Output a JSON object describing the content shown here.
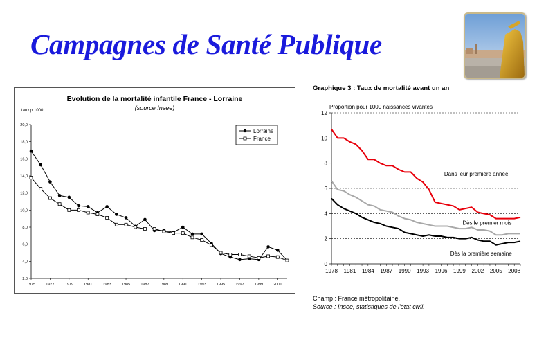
{
  "slide": {
    "title": "Campagnes de Santé Publique"
  },
  "photo": {
    "icon": "town-square-statue-photo"
  },
  "chart_data": [
    {
      "type": "line",
      "title": "Evolution de la mortalité infantile France - Lorraine",
      "subtitle": "(source Insee)",
      "ylabel": "taux p.1000",
      "xlabel": "",
      "ylim": [
        2.0,
        20.0
      ],
      "yticks": [
        "2,0",
        "4,0",
        "6,0",
        "8,0",
        "10,0",
        "12,0",
        "14,0",
        "16,0",
        "18,0",
        "20,0"
      ],
      "xlim": [
        1975,
        2002
      ],
      "xticks": [
        "1975",
        "1977",
        "1979",
        "1981",
        "1983",
        "1985",
        "1987",
        "1989",
        "1991",
        "1993",
        "1995",
        "1997",
        "1999",
        "2001"
      ],
      "x": [
        1975,
        1976,
        1977,
        1978,
        1979,
        1980,
        1981,
        1982,
        1983,
        1984,
        1985,
        1986,
        1987,
        1988,
        1989,
        1990,
        1991,
        1992,
        1993,
        1994,
        1995,
        1996,
        1997,
        1998,
        1999,
        2000,
        2001,
        2002
      ],
      "series": [
        {
          "name": "Lorraine",
          "marker": "filled-circle",
          "values": [
            16.9,
            15.3,
            13.3,
            11.7,
            11.5,
            10.5,
            10.4,
            9.7,
            10.4,
            9.5,
            9.1,
            8.1,
            8.9,
            7.6,
            7.6,
            7.4,
            8.0,
            7.2,
            7.2,
            6.1,
            4.9,
            4.5,
            4.2,
            4.3,
            4.2,
            5.7,
            5.3,
            4.1
          ]
        },
        {
          "name": "France",
          "marker": "open-square",
          "values": [
            13.8,
            12.5,
            11.4,
            10.7,
            10.0,
            10.0,
            9.7,
            9.5,
            9.1,
            8.3,
            8.3,
            8.0,
            7.8,
            7.8,
            7.5,
            7.3,
            7.3,
            6.8,
            6.5,
            5.9,
            5.0,
            4.8,
            4.8,
            4.6,
            4.4,
            4.6,
            4.5,
            4.1
          ]
        }
      ],
      "legend": "top-right",
      "grid": false
    },
    {
      "type": "line",
      "title": "Graphique 3 : Taux de mortalité avant un an",
      "ylabel": "Proportion pour 1000 naissances vivantes",
      "xlabel": "",
      "ylim": [
        0,
        12
      ],
      "yticks": [
        "0",
        "2",
        "4",
        "6",
        "8",
        "10",
        "12"
      ],
      "xlim": [
        1978,
        2009
      ],
      "xticks": [
        "1978",
        "1981",
        "1984",
        "1987",
        "1990",
        "1993",
        "1996",
        "1999",
        "2002",
        "2005",
        "2008"
      ],
      "x": [
        1978,
        1979,
        1980,
        1981,
        1982,
        1983,
        1984,
        1985,
        1986,
        1987,
        1988,
        1989,
        1990,
        1991,
        1992,
        1993,
        1994,
        1995,
        1996,
        1997,
        1998,
        1999,
        2000,
        2001,
        2002,
        2003,
        2004,
        2005,
        2006,
        2007,
        2008,
        2009
      ],
      "series": [
        {
          "label": "Dans leur première année",
          "color": "#e8000b",
          "values": [
            10.7,
            10.0,
            10.0,
            9.7,
            9.5,
            9.0,
            8.3,
            8.3,
            8.0,
            7.8,
            7.8,
            7.5,
            7.3,
            7.3,
            6.8,
            6.5,
            5.9,
            4.9,
            4.8,
            4.7,
            4.6,
            4.3,
            4.4,
            4.5,
            4.1,
            4.0,
            3.9,
            3.6,
            3.6,
            3.6,
            3.6,
            3.7
          ]
        },
        {
          "label": "Dès le premier mois",
          "color": "#a8a8a8",
          "values": [
            6.6,
            5.9,
            5.8,
            5.5,
            5.3,
            5.0,
            4.7,
            4.6,
            4.3,
            4.2,
            4.1,
            3.8,
            3.6,
            3.5,
            3.3,
            3.2,
            3.1,
            3.0,
            3.0,
            3.0,
            2.9,
            2.8,
            2.8,
            2.9,
            2.7,
            2.7,
            2.6,
            2.3,
            2.3,
            2.4,
            2.4,
            2.4
          ]
        },
        {
          "label": "Dès la première semaine",
          "color": "#000000",
          "values": [
            5.2,
            4.7,
            4.4,
            4.2,
            4.0,
            3.7,
            3.5,
            3.3,
            3.2,
            3.0,
            2.9,
            2.8,
            2.5,
            2.4,
            2.3,
            2.2,
            2.3,
            2.2,
            2.2,
            2.1,
            2.1,
            2.0,
            2.0,
            2.1,
            1.9,
            1.8,
            1.8,
            1.5,
            1.6,
            1.7,
            1.7,
            1.8
          ]
        }
      ],
      "grid": "horizontal-dotted",
      "legend": "inline-labels"
    }
  ],
  "footnote": {
    "champ": "Champ : France métropolitaine.",
    "source": "Source : Insee, statistiques de l'état civil."
  }
}
